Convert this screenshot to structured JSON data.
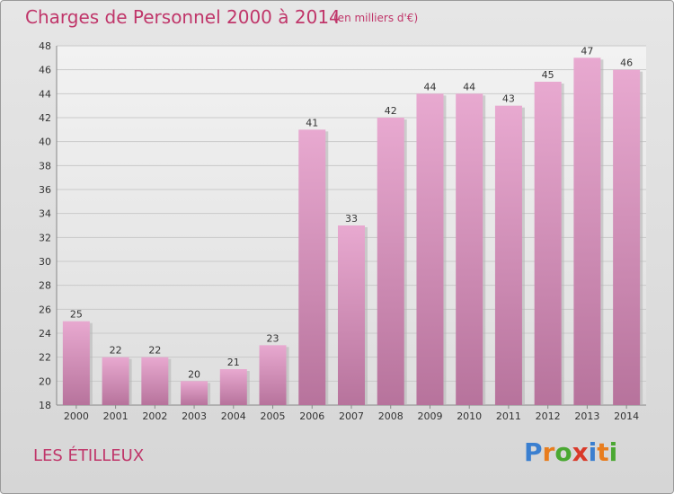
{
  "header": {
    "title": "Charges de Personnel 2000 à 2014",
    "subtitle": "(en milliers d'€)"
  },
  "footer": {
    "commune": "LES ÉTILLEUX",
    "logo": [
      "P",
      "r",
      "o",
      "x",
      "i",
      "t",
      "i"
    ],
    "logo_colors": [
      "#3a7fd0",
      "#e87d1e",
      "#4aa832",
      "#d93a2a",
      "#3a7fd0",
      "#e87d1e",
      "#4aa832"
    ]
  },
  "chart_data": {
    "type": "bar",
    "title": "Charges de Personnel 2000 à 2014",
    "subtitle": "(en milliers d'€)",
    "categories": [
      "2000",
      "2001",
      "2002",
      "2003",
      "2004",
      "2005",
      "2006",
      "2007",
      "2008",
      "2009",
      "2010",
      "2011",
      "2012",
      "2013",
      "2014"
    ],
    "values": [
      25,
      22,
      22,
      20,
      21,
      23,
      41,
      33,
      42,
      44,
      44,
      43,
      45,
      47,
      46
    ],
    "ylim": [
      18,
      48
    ],
    "yticks": [
      18,
      20,
      22,
      24,
      26,
      28,
      30,
      32,
      34,
      36,
      38,
      40,
      42,
      44,
      46,
      48
    ],
    "grid": true,
    "bar_color": "#d98fba"
  }
}
